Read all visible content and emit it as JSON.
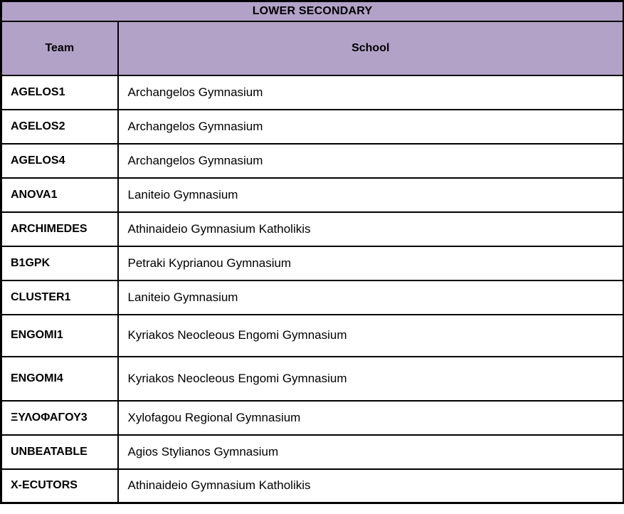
{
  "table": {
    "title": "LOWER SECONDARY",
    "columns": {
      "team": "Team",
      "school": "School"
    },
    "rows": [
      {
        "team": "AGELOS1",
        "school": "Archangelos Gymnasium"
      },
      {
        "team": "AGELOS2",
        "school": "Archangelos Gymnasium"
      },
      {
        "team": "AGELOS4",
        "school": "Archangelos Gymnasium"
      },
      {
        "team": "ANOVA1",
        "school": "Laniteio Gymnasium"
      },
      {
        "team": "ARCHIMEDES",
        "school": "Athinaideio Gymnasium Katholikis"
      },
      {
        "team": "B1GPK",
        "school": "Petraki Kyprianou Gymnasium"
      },
      {
        "team": "CLUSTER1",
        "school": "Laniteio Gymnasium"
      },
      {
        "team": "ENGOMI1",
        "school": "Kyriakos Neocleous Engomi Gymnasium"
      },
      {
        "team": "ENGOMI4",
        "school": "Kyriakos Neocleous Engomi Gymnasium"
      },
      {
        "team": "ΞΥΛΟΦΑΓΟΥ3",
        "school": "Xylofagou Regional Gymnasium"
      },
      {
        "team": "UNBEATABLE",
        "school": "Agios Stylianos Gymnasium"
      },
      {
        "team": "X-ECUTORS",
        "school": "Athinaideio Gymnasium Katholikis"
      }
    ],
    "colors": {
      "header_bg": "#B2A2C7",
      "border": "#000000",
      "row_bg": "#FFFFFF",
      "text": "#000000"
    }
  }
}
